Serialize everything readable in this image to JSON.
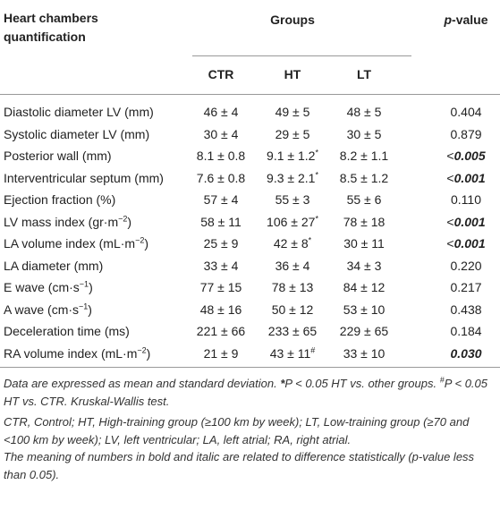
{
  "header": {
    "title": "Heart chambers quantification",
    "groups": "Groups",
    "pvalue": {
      "p": "p",
      "rest": "-value"
    },
    "columns": [
      "CTR",
      "HT",
      "LT"
    ]
  },
  "table": {
    "rows": [
      {
        "label": {
          "text": "Diastolic diameter LV (mm)"
        },
        "cells": [
          "46 ± 4",
          "49 ± 5",
          "48 ± 5"
        ],
        "p": {
          "value": "0.404",
          "bold": false
        }
      },
      {
        "label": {
          "text": "Systolic diameter LV (mm)"
        },
        "cells": [
          "30 ± 4",
          "29 ± 5",
          "30 ± 5"
        ],
        "p": {
          "value": "0.879",
          "bold": false
        }
      },
      {
        "label": {
          "text": "Posterior wall (mm)"
        },
        "cells": [
          "8.1 ± 0.8",
          {
            "text": "9.1 ± 1.2",
            "mark": "*"
          },
          "8.2 ± 1.1"
        ],
        "p": {
          "prefix": "<",
          "value": "0.005",
          "bold": true
        }
      },
      {
        "label": {
          "text": "Interventricular septum (mm)"
        },
        "cells": [
          "7.6 ± 0.8",
          {
            "text": "9.3 ± 2.1",
            "mark": "*"
          },
          "8.5 ± 1.2"
        ],
        "p": {
          "prefix": "<",
          "value": "0.001",
          "bold": true
        }
      },
      {
        "label": {
          "text": "Ejection fraction (%)"
        },
        "cells": [
          "57 ± 4",
          "55 ± 3",
          "55 ± 6"
        ],
        "p": {
          "value": "0.110",
          "bold": false
        }
      },
      {
        "label": {
          "text": "LV mass index (gr·m",
          "sup": "−2",
          "tail": ")"
        },
        "cells": [
          "58 ± 11",
          {
            "text": "106 ± 27",
            "mark": "*"
          },
          "78 ± 18"
        ],
        "p": {
          "prefix": "<",
          "value": "0.001",
          "bold": true
        }
      },
      {
        "label": {
          "text": "LA volume index (mL·m",
          "sup": "−2",
          "tail": ")"
        },
        "cells": [
          "25 ± 9",
          {
            "text": "42 ± 8",
            "mark": "*"
          },
          "30 ± 11"
        ],
        "p": {
          "prefix": "<",
          "value": "0.001",
          "bold": true
        }
      },
      {
        "label": {
          "text": "LA diameter (mm)"
        },
        "cells": [
          "33 ± 4",
          "36 ± 4",
          "34 ± 3"
        ],
        "p": {
          "value": "0.220",
          "bold": false
        }
      },
      {
        "label": {
          "text": "E wave (cm·s",
          "sup": "−1",
          "tail": ")"
        },
        "cells": [
          "77 ± 15",
          "78 ± 13",
          "84 ± 12"
        ],
        "p": {
          "value": "0.217",
          "bold": false
        }
      },
      {
        "label": {
          "text": "A wave (cm·s",
          "sup": "−1",
          "tail": ")"
        },
        "cells": [
          "48 ± 16",
          "50 ± 12",
          "53 ± 10"
        ],
        "p": {
          "value": "0.438",
          "bold": false
        }
      },
      {
        "label": {
          "text": "Deceleration time (ms)"
        },
        "cells": [
          "221 ± 66",
          "233 ± 65",
          "229 ± 65"
        ],
        "p": {
          "value": "0.184",
          "bold": false
        }
      },
      {
        "label": {
          "text": "RA volume index (mL·m",
          "sup": "−2",
          "tail": ")"
        },
        "cells": [
          "21 ± 9",
          {
            "text": "43 ± 11",
            "mark": "#"
          },
          "33 ± 10"
        ],
        "p": {
          "value": "0.030",
          "bold": true
        }
      }
    ]
  },
  "notes": [
    [
      "Data are expressed as mean and standard deviation. ",
      "*",
      "P < 0.05 HT vs. other groups. ",
      "#",
      "P < 0.05 HT vs. CTR. Kruskal-Wallis test."
    ],
    [
      "CTR, Control; HT, High-training group (≥100 km by week); LT, Low-training group (≥70 and <100 km by week); LV, left ventricular; LA, left atrial; RA, right atrial."
    ],
    [
      "The meaning of numbers in bold and italic are related to difference statistically (p-value less than 0.05)."
    ]
  ]
}
